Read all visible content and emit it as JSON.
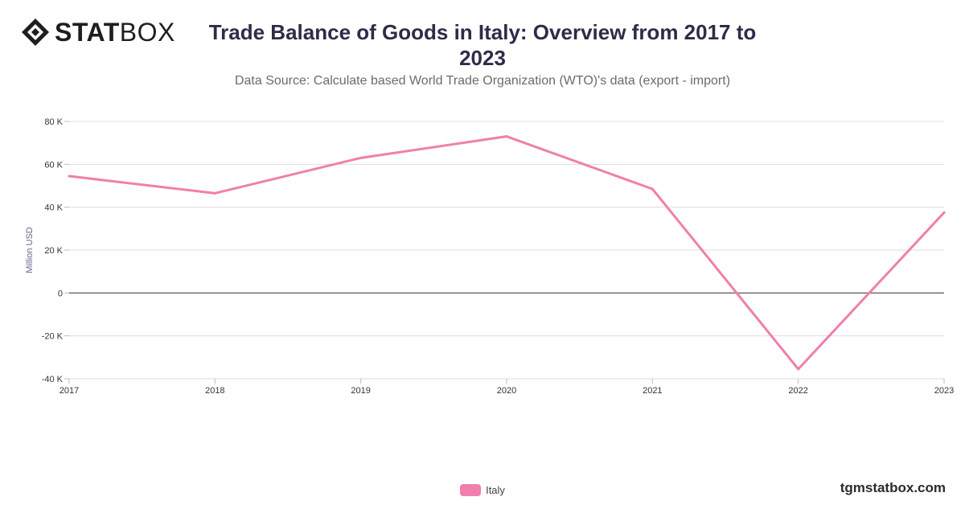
{
  "brand": {
    "logo_bold": "STAT",
    "logo_light": "BOX",
    "logo_icon": "diamond-logo-icon",
    "footer": "tgmstatbox.com"
  },
  "chart_data": {
    "type": "line",
    "title": "Trade Balance of Goods in Italy: Overview from 2017 to 2023",
    "subtitle": "Data Source: Calculate based World Trade Organization (WTO)'s data (export - import)",
    "ylabel": "Million USD",
    "xlabel": "",
    "x": [
      "2017",
      "2018",
      "2019",
      "2020",
      "2021",
      "2022",
      "2023"
    ],
    "series": [
      {
        "name": "Italy",
        "color": "#f07fab",
        "values": [
          54500,
          46500,
          63000,
          73000,
          48500,
          -35500,
          37500
        ]
      }
    ],
    "ylim": [
      -40000,
      80000
    ],
    "yticks": [
      80000,
      60000,
      40000,
      20000,
      0,
      -20000,
      -40000
    ],
    "ytick_labels": [
      "80 K",
      "60 K",
      "40 K",
      "20 K",
      "0",
      "-20 K",
      "-40 K"
    ],
    "grid": true,
    "legend": "bottom-center"
  }
}
